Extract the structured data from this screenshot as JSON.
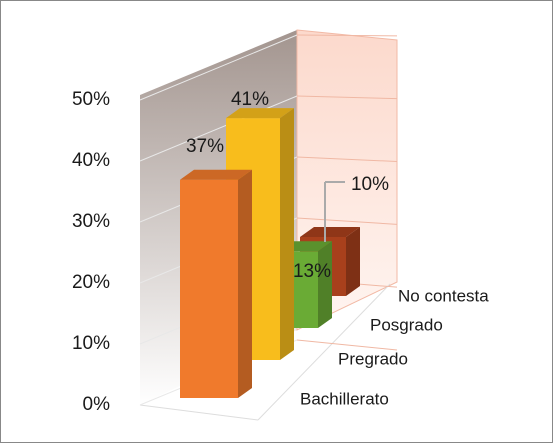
{
  "chart_data": {
    "type": "bar3d",
    "categories": [
      "Bachillerato",
      "Pregrado",
      "Posgrado",
      "No contesta"
    ],
    "values": [
      37,
      41,
      13,
      10
    ],
    "value_labels": [
      "37%",
      "41%",
      "13%",
      "10%"
    ],
    "colors": [
      "#f07a2c",
      "#f8bd1c",
      "#6aab35",
      "#a8401c"
    ],
    "ylim": [
      0,
      50
    ],
    "yticks": [
      {
        "value": 0,
        "label": "0%"
      },
      {
        "value": 10,
        "label": "10%"
      },
      {
        "value": 20,
        "label": "20%"
      },
      {
        "value": 30,
        "label": "30%"
      },
      {
        "value": 40,
        "label": "40%"
      },
      {
        "value": 50,
        "label": "50%"
      }
    ],
    "grid": true
  }
}
